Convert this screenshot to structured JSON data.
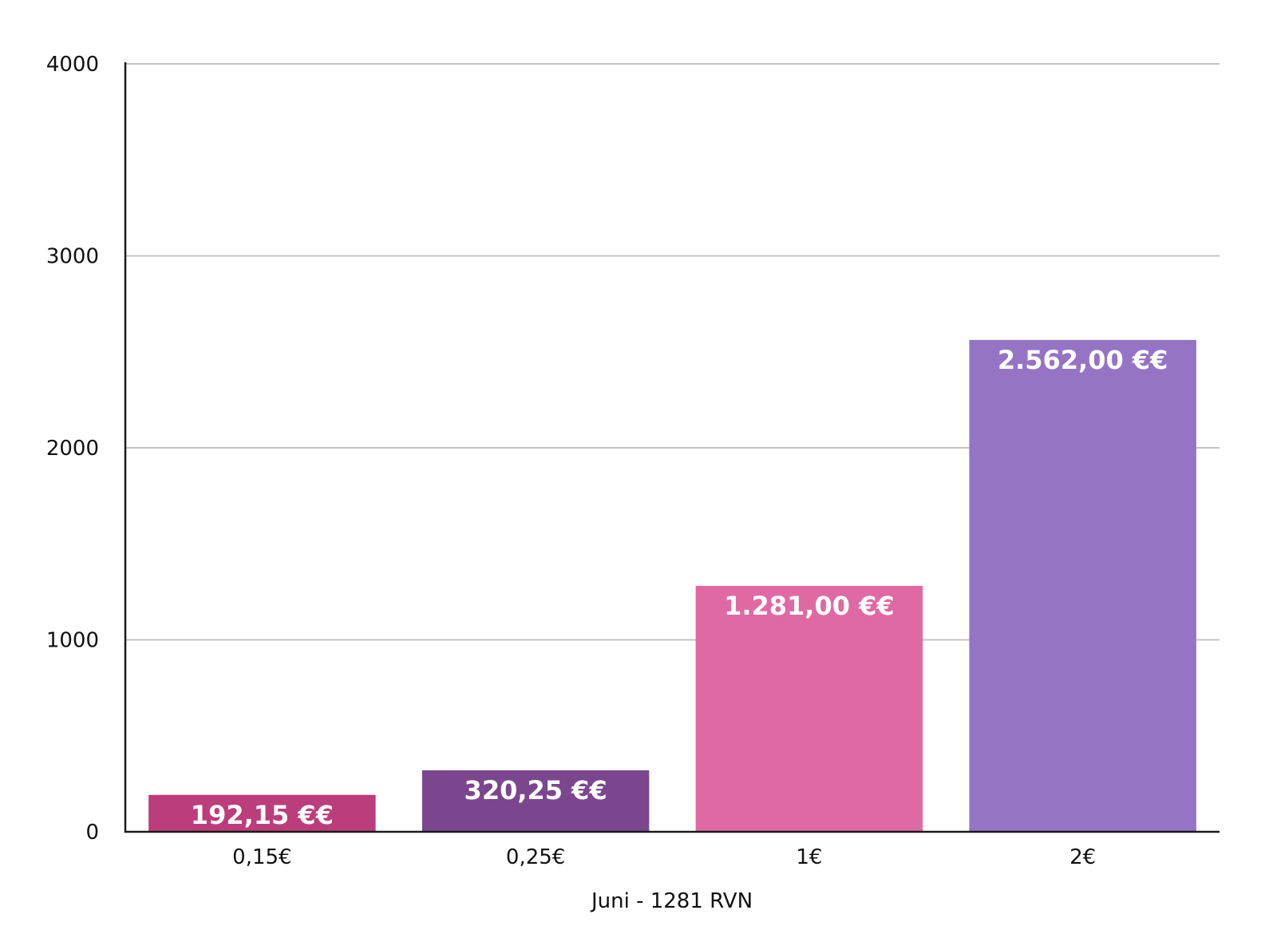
{
  "chart_data": {
    "type": "bar",
    "categories": [
      "0,15€",
      "0,25€",
      "1€",
      "2€"
    ],
    "values": [
      192.15,
      320.25,
      1281.0,
      2562.0
    ],
    "data_labels": [
      "192,15 €€",
      "320,25 €€",
      "1.281,00 €€",
      "2.562,00 €€"
    ],
    "bar_colors": [
      "#bb3d7c",
      "#7b468e",
      "#df69a3",
      "#9574c5"
    ],
    "title": "",
    "xlabel": "Juni - 1281 RVN",
    "ylabel": "",
    "ylim": [
      0,
      4000
    ],
    "yticks": [
      0,
      1000,
      2000,
      3000,
      4000
    ],
    "ytick_labels": [
      "0",
      "1000",
      "2000",
      "3000",
      "4000"
    ],
    "grid": true,
    "legend": "none"
  }
}
